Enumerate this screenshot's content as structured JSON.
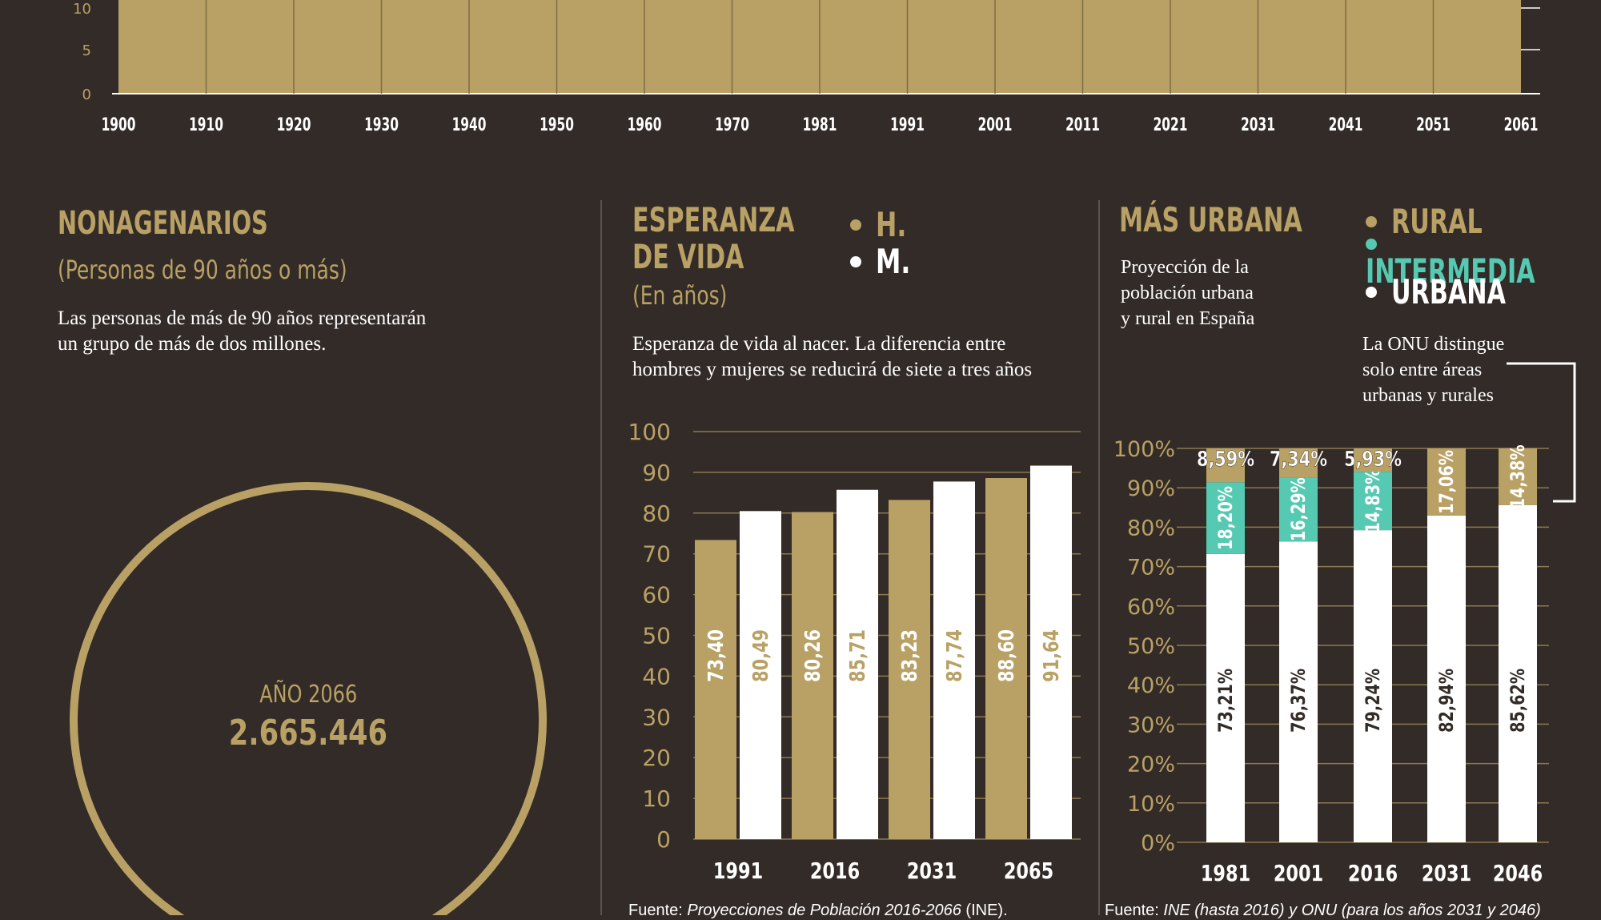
{
  "top_timeline": {
    "y_ticks": [
      "10",
      "5",
      "0"
    ],
    "years": [
      "1900",
      "1910",
      "1920",
      "1930",
      "1940",
      "1950",
      "1960",
      "1970",
      "1981",
      "1991",
      "2001",
      "2011",
      "2021",
      "2031",
      "2041",
      "2051",
      "2061"
    ]
  },
  "nonagenarios": {
    "title": "NONAGENARIOS",
    "subtitle": "(Personas de 90 años o más)",
    "description_line1": "Las personas de más de  90 años representarán",
    "description_line2": "un grupo de más de dos millones.",
    "year_label": "AÑO 2066",
    "value": "2.665.446"
  },
  "esperanza": {
    "title_line1": "ESPERANZA",
    "title_line2": "DE VIDA",
    "subtitle": "(En años)",
    "legend_h": "H.",
    "legend_m": "M.",
    "description_line1": "Esperanza de vida al nacer. La diferencia entre",
    "description_line2": "hombres y mujeres se reducirá de siete a tres años",
    "footer_prefix": "Fuente: ",
    "footer_source": "Proyecciones de Población 2016-2066",
    "footer_suffix": " (INE)."
  },
  "urbana": {
    "title": "MÁS URBANA",
    "legend_rural": "RURAL",
    "legend_intermedia": "INTERMEDIA",
    "legend_urbana": "URBANA",
    "description_line1": "Proyección de la",
    "description_line2": "población urbana",
    "description_line3": "y rural en España",
    "note_line1": "La ONU distingue",
    "note_line2": "solo entre áreas",
    "note_line3": "urbanas y rurales",
    "footer_prefix": "Fuente: ",
    "footer_source": "INE (hasta 2016) y ONU (para los años 2031 y 2046)",
    "footer_suffix": ""
  },
  "colors": {
    "background": "#332b27",
    "gold": "#b9a165",
    "teal": "#56c9b2",
    "white": "#ffffff"
  },
  "chart_data": [
    {
      "type": "bar",
      "categories": [
        "1991",
        "2016",
        "2031",
        "2065"
      ],
      "series": [
        {
          "name": "H.",
          "values": [
            73.4,
            80.26,
            83.23,
            88.6
          ],
          "labels": [
            "73,40",
            "80,26",
            "83,23",
            "88,60"
          ]
        },
        {
          "name": "M.",
          "values": [
            80.49,
            85.71,
            87.74,
            91.64
          ],
          "labels": [
            "80,49",
            "85,71",
            "87,74",
            "91,64"
          ]
        }
      ],
      "y_ticks": [
        "0",
        "10",
        "20",
        "30",
        "40",
        "50",
        "60",
        "70",
        "80",
        "90",
        "100"
      ],
      "ylim": [
        0,
        100
      ],
      "grid": true
    },
    {
      "type": "bar",
      "stacked": true,
      "categories": [
        "1981",
        "2001",
        "2016",
        "2031",
        "2046"
      ],
      "series": [
        {
          "name": "URBANA",
          "values": [
            73.21,
            76.37,
            79.24,
            82.94,
            85.62
          ],
          "labels": [
            "73,21%",
            "76,37%",
            "79,24%",
            "82,94%",
            "85,62%"
          ]
        },
        {
          "name": "INTERMEDIA",
          "values": [
            18.2,
            16.29,
            14.83,
            0,
            0
          ],
          "labels": [
            "18,20%",
            "16,29%",
            "14,83%",
            "",
            ""
          ]
        },
        {
          "name": "RURAL",
          "values": [
            8.59,
            7.34,
            5.93,
            17.06,
            14.38
          ],
          "labels": [
            "8,59%",
            "7,34%",
            "5,93%",
            "17,06%",
            "14,38%"
          ]
        }
      ],
      "y_ticks": [
        "0%",
        "10%",
        "20%",
        "30%",
        "40%",
        "50%",
        "60%",
        "70%",
        "80%",
        "90%",
        "100%"
      ],
      "ylim": [
        0,
        100
      ],
      "grid": true
    }
  ]
}
